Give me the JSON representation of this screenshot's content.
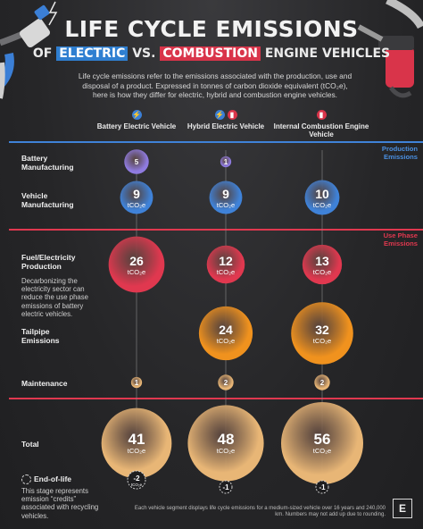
{
  "header": {
    "title": "LIFE CYCLE EMISSIONS",
    "subtitle_prefix": "OF",
    "subtitle_electric": "ELECTRIC",
    "subtitle_mid": "VS.",
    "subtitle_combustion": "COMBUSTION",
    "subtitle_suffix": "ENGINE VEHICLES",
    "intro": "Life cycle emissions refer to the emissions associated with the production, use and disposal of a product. Expressed in tonnes of carbon dioxide equivalent (tCO₂e), here is how they differ for electric, hybrid and combustion engine vehicles."
  },
  "sections": {
    "production": "Production Emissions",
    "use_phase": "Use Phase Emissions"
  },
  "notes": {
    "fuel_note": "Decarbonizing the electricity sector can reduce the use phase emissions of battery electric vehicles.",
    "end_of_life_label": "End-of-life",
    "end_of_life_note": "This stage represents emission “credits” associated with recycling vehicles.",
    "footer": "Each vehicle segment displays life cycle emissions for a medium-sized vehicle over 16 years and 240,000 km. Numbers may not add up due to rounding.",
    "brand": "E"
  },
  "colors": {
    "blue": "#3f82d8",
    "red": "#e0384f",
    "orange": "#f0921e",
    "tan": "#e8b676",
    "purple": "#8f7be0",
    "background": "#262628"
  },
  "chart_data": {
    "type": "bubble",
    "unit": "tCO₂e",
    "vehicles": [
      {
        "name": "Battery Electric Vehicle",
        "icons": [
          "electric-icon"
        ]
      },
      {
        "name": "Hybrid Electric Vehicle",
        "icons": [
          "electric-icon",
          "fuel-icon"
        ]
      },
      {
        "name": "Internal Combustion Engine Vehicle",
        "icons": [
          "fuel-icon"
        ]
      }
    ],
    "stages": [
      {
        "label": "Battery Manufacturing",
        "section": "production",
        "color": "#8f7be0",
        "values": [
          5,
          1,
          null
        ]
      },
      {
        "label": "Vehicle Manufacturing",
        "section": "production",
        "color": "#3f82d8",
        "values": [
          9,
          9,
          10
        ]
      },
      {
        "label": "Fuel/Electricity Production",
        "section": "use_phase",
        "color": "#e0384f",
        "values": [
          26,
          12,
          13
        ]
      },
      {
        "label": "Tailpipe Emissions",
        "section": "use_phase",
        "color": "#f0921e",
        "values": [
          null,
          24,
          32
        ]
      },
      {
        "label": "Maintenance",
        "section": "use_phase",
        "color": "#e8b676",
        "values": [
          1,
          2,
          2
        ]
      },
      {
        "label": "Total",
        "section": "total",
        "color": "#e8b676",
        "values": [
          41,
          48,
          56
        ]
      }
    ],
    "end_of_life": [
      -2,
      -1,
      -1
    ]
  }
}
